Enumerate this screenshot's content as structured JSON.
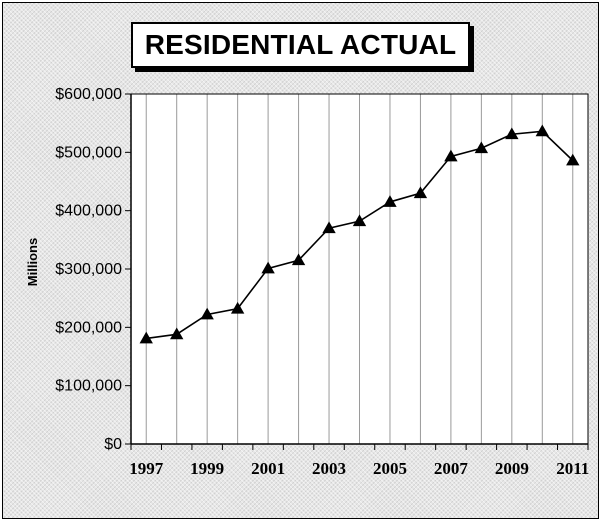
{
  "chart_data": {
    "type": "line",
    "title": "RESIDENTIAL ACTUAL",
    "ylabel": "Millions",
    "xlabel": "",
    "x": [
      1997,
      1998,
      1999,
      2000,
      2001,
      2002,
      2003,
      2004,
      2005,
      2006,
      2007,
      2008,
      2009,
      2010,
      2011
    ],
    "series": [
      {
        "values": [
          181000,
          188000,
          222000,
          232000,
          301000,
          315000,
          370000,
          382000,
          415000,
          430000,
          493000,
          507000,
          531000,
          536000,
          486000
        ],
        "color": "#000000",
        "marker": "triangle"
      }
    ],
    "ylim": [
      0,
      600000
    ],
    "yticks": [
      0,
      100000,
      200000,
      300000,
      400000,
      500000,
      600000
    ],
    "ytick_labels": [
      "$0",
      "$100,000",
      "$200,000",
      "$300,000",
      "$400,000",
      "$500,000",
      "$600,000"
    ],
    "xtick_labels": [
      "1997",
      "1999",
      "2001",
      "2003",
      "2005",
      "2007",
      "2009",
      "2011"
    ],
    "grid": "vertical",
    "legend": "none"
  }
}
